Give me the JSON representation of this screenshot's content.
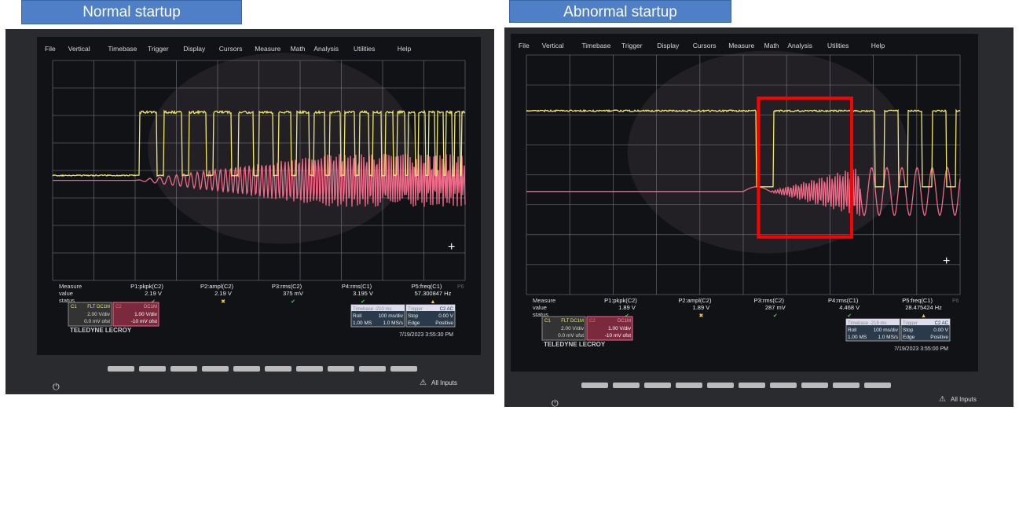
{
  "captions": {
    "left": "Normal startup",
    "right": "Abnormal startup"
  },
  "menu": [
    "File",
    "Vertical",
    "Timebase",
    "Trigger",
    "Display",
    "Cursors",
    "Measure",
    "Math",
    "Analysis",
    "Utilities",
    "Help"
  ],
  "brand": {
    "name": "TELEDYNE",
    "sub": "LECROY"
  },
  "measure_labels": [
    "Measure",
    "value",
    "status"
  ],
  "all_inputs": "All Inputs",
  "colors": {
    "c1": "#f2e86a",
    "c2": "#f06a8a",
    "highlight": "#ff0000",
    "caption": "#4f7fc7"
  },
  "scopes": [
    {
      "id": "normal",
      "params": [
        {
          "name": "P1:pkpk(C2)",
          "value": "2.19 V",
          "status": "check"
        },
        {
          "name": "P2:ampl(C2)",
          "value": "2.19 V",
          "status": "cross"
        },
        {
          "name": "P3:rms(C2)",
          "value": "375 mV",
          "status": "check"
        },
        {
          "name": "P4:rms(C1)",
          "value": "3.195 V",
          "status": "check"
        },
        {
          "name": "P5:freq(C1)",
          "value": "57.300847 Hz",
          "status": "warning"
        }
      ],
      "p6": "P6",
      "c1": {
        "label": "C1",
        "coupling": "FLT DC1M",
        "vdiv": "2.00 V/div",
        "ofst": "0.0 mV ofst"
      },
      "c2": {
        "label": "C2",
        "coupling": "DC1M",
        "vdiv": "1.00 V/div",
        "ofst": "-10 mV ofst"
      },
      "timebase": {
        "title": "Timebase",
        "delay": "-210 ms",
        "mode": "Roll",
        "tdiv": "100 ms/div",
        "samples": "1.00 MS",
        "rate": "1.0 MS/s"
      },
      "trigger": {
        "title": "Trigger",
        "src": "C2 AC",
        "mode": "Stop",
        "level": "0.00 V",
        "type": "Edge",
        "slope": "Positive"
      },
      "datetime": "7/19/2023 3:55:30 PM"
    },
    {
      "id": "abnormal",
      "params": [
        {
          "name": "P1:pkpk(C2)",
          "value": "1.89 V",
          "status": "check"
        },
        {
          "name": "P2:ampl(C2)",
          "value": "1.89 V",
          "status": "cross"
        },
        {
          "name": "P3:rms(C2)",
          "value": "287 mV",
          "status": "check"
        },
        {
          "name": "P4:rms(C1)",
          "value": "4.468 V",
          "status": "check"
        },
        {
          "name": "P5:freq(C1)",
          "value": "28.475424 Hz",
          "status": "warning"
        }
      ],
      "p6": "P6",
      "c1": {
        "label": "C1",
        "coupling": "FLT DC1M",
        "vdiv": "2.00 V/div",
        "ofst": "0.0 mV ofst"
      },
      "c2": {
        "label": "C2",
        "coupling": "DC1M",
        "vdiv": "1.00 V/div",
        "ofst": "-10 mV ofst"
      },
      "timebase": {
        "title": "Timebase",
        "delay": "-218 ms",
        "mode": "Roll",
        "tdiv": "100 ms/div",
        "samples": "1.00 MS",
        "rate": "1.0 MS/s"
      },
      "trigger": {
        "title": "Trigger",
        "src": "C2 AC",
        "mode": "Stop",
        "level": "0.00 V",
        "type": "Edge",
        "slope": "Positive"
      },
      "datetime": "7/19/2023 3:55:00 PM"
    }
  ]
}
